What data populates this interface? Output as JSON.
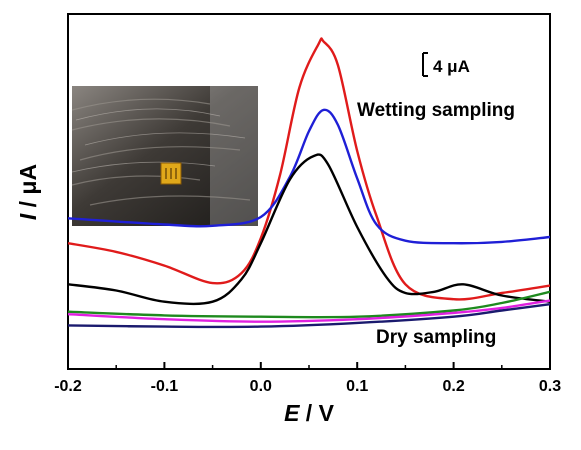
{
  "chart_data": {
    "type": "line",
    "xlabel_symbol": "E",
    "xlabel_unit": "V",
    "ylabel_symbol": "I",
    "ylabel_unit": "μA",
    "xlim": [
      -0.2,
      0.3
    ],
    "x_ticks": [
      "-0.2",
      "-0.1",
      "0.0",
      "0.1",
      "0.2",
      "0.3"
    ],
    "scale_bar": "4 μA",
    "annotations": {
      "wet": "Wetting sampling",
      "dry": "Dry sampling"
    },
    "series": [
      {
        "color": "#e01b1b",
        "x": [
          -0.2,
          -0.15,
          -0.1,
          -0.05,
          -0.02,
          0.0,
          0.02,
          0.04,
          0.06,
          0.065,
          0.08,
          0.1,
          0.12,
          0.15,
          0.2,
          0.25,
          0.3
        ],
        "y": [
          5.1,
          4.4,
          3.3,
          1.9,
          2.7,
          5.5,
          10.6,
          17.6,
          21.1,
          21.3,
          19.4,
          12.5,
          7.3,
          1.8,
          0.6,
          1.1,
          1.7
        ]
      },
      {
        "color": "#1f1fd6",
        "x": [
          -0.2,
          -0.1,
          -0.05,
          0.0,
          0.03,
          0.05,
          0.065,
          0.08,
          0.1,
          0.12,
          0.15,
          0.2,
          0.25,
          0.3
        ],
        "y": [
          7.1,
          6.6,
          6.5,
          7.2,
          10.4,
          14.1,
          15.8,
          14.6,
          10.3,
          6.6,
          5.3,
          5.1,
          5.2,
          5.6
        ]
      },
      {
        "color": "#000000",
        "x": [
          -0.2,
          -0.15,
          -0.1,
          -0.05,
          -0.02,
          0.0,
          0.03,
          0.055,
          0.07,
          0.1,
          0.13,
          0.15,
          0.18,
          0.21,
          0.25,
          0.3
        ],
        "y": [
          1.8,
          1.3,
          0.4,
          0.4,
          2.2,
          5.1,
          10.2,
          12.1,
          11.4,
          6.4,
          2.4,
          1.1,
          1.2,
          1.8,
          0.9,
          0.4
        ]
      },
      {
        "color": "#1e8a1e",
        "x": [
          -0.2,
          -0.1,
          0.0,
          0.1,
          0.2,
          0.25,
          0.3
        ],
        "y": [
          -0.4,
          -0.7,
          -0.8,
          -0.8,
          -0.3,
          0.3,
          1.2
        ]
      },
      {
        "color": "#e020e0",
        "x": [
          -0.2,
          -0.1,
          0.0,
          0.1,
          0.2,
          0.25,
          0.3
        ],
        "y": [
          -0.6,
          -1.0,
          -1.2,
          -1.0,
          -0.5,
          -0.1,
          0.5
        ]
      },
      {
        "color": "#1a1a6e",
        "x": [
          -0.2,
          -0.1,
          0.0,
          0.1,
          0.2,
          0.25,
          0.3
        ],
        "y": [
          -1.5,
          -1.6,
          -1.6,
          -1.3,
          -0.8,
          -0.3,
          0.2
        ]
      }
    ]
  }
}
